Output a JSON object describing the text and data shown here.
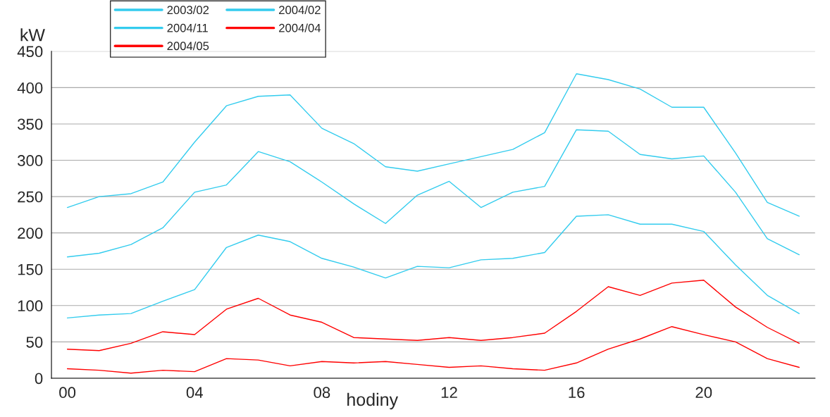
{
  "chart_data": {
    "type": "line",
    "xlabel": "hodiny",
    "ylabel": "kW",
    "categories": [
      "00",
      null,
      null,
      null,
      "04",
      null,
      null,
      null,
      "08",
      null,
      null,
      null,
      "12",
      null,
      null,
      null,
      "16",
      null,
      null,
      null,
      "20",
      null,
      null,
      null
    ],
    "series": [
      {
        "name": "2003/02",
        "color": "#33ccee",
        "values": [
          235,
          250,
          254,
          270,
          325,
          375,
          388,
          390,
          344,
          323,
          291,
          285,
          295,
          305,
          315,
          338,
          419,
          411,
          398,
          373,
          373,
          310,
          242,
          223
        ]
      },
      {
        "name": "2004/02",
        "color": "#33ccee",
        "values": [
          167,
          172,
          184,
          207,
          256,
          266,
          312,
          298,
          270,
          240,
          213,
          252,
          271,
          235,
          256,
          264,
          342,
          340,
          308,
          302,
          306,
          256,
          192,
          170
        ]
      },
      {
        "name": "2004/11",
        "color": "#33ccee",
        "values": [
          83,
          87,
          89,
          106,
          122,
          180,
          197,
          188,
          165,
          153,
          138,
          154,
          152,
          163,
          165,
          173,
          223,
          225,
          212,
          212,
          202,
          156,
          114,
          89
        ]
      },
      {
        "name": "2004/04",
        "color": "#ff0000",
        "values": [
          40,
          38,
          48,
          64,
          60,
          95,
          110,
          87,
          77,
          56,
          54,
          52,
          56,
          52,
          56,
          62,
          92,
          126,
          114,
          131,
          135,
          98,
          70,
          48
        ]
      },
      {
        "name": "2004/05",
        "color": "#ff0000",
        "values": [
          13,
          11,
          7,
          11,
          9,
          27,
          25,
          17,
          23,
          21,
          23,
          19,
          15,
          17,
          13,
          11,
          21,
          40,
          54,
          71,
          60,
          50,
          27,
          15
        ]
      }
    ],
    "ylim": [
      0,
      450
    ],
    "yticks": [
      0,
      50,
      100,
      150,
      200,
      250,
      300,
      350,
      400,
      450
    ],
    "grid": "y",
    "legend": "top left",
    "marker": "none",
    "line_style": "solid"
  }
}
